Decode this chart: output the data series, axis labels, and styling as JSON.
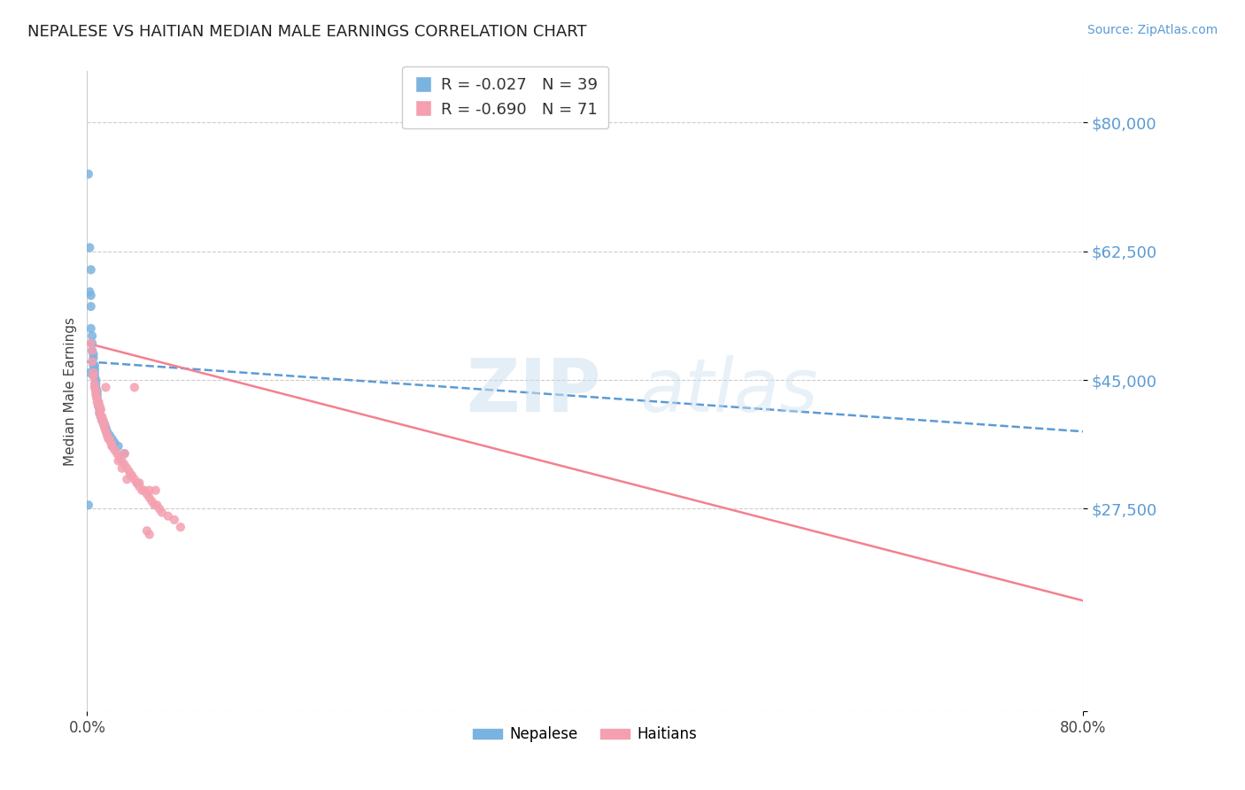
{
  "title": "NEPALESE VS HAITIAN MEDIAN MALE EARNINGS CORRELATION CHART",
  "source": "Source: ZipAtlas.com",
  "ylabel": "Median Male Earnings",
  "ylim": [
    0,
    87000
  ],
  "xlim": [
    0.0,
    0.8
  ],
  "background": "#ffffff",
  "nepalese_color": "#7ab3e0",
  "haitian_color": "#f4a0b0",
  "nepalese_line_color": "#5b9bd5",
  "haitian_line_color": "#f48090",
  "grid_color": "#cccccc",
  "ytick_color": "#5b9bd5",
  "nepalese_scatter_x": [
    0.001,
    0.002,
    0.002,
    0.003,
    0.003,
    0.003,
    0.004,
    0.004,
    0.004,
    0.005,
    0.005,
    0.005,
    0.006,
    0.006,
    0.006,
    0.006,
    0.007,
    0.007,
    0.007,
    0.008,
    0.008,
    0.008,
    0.009,
    0.009,
    0.01,
    0.01,
    0.011,
    0.012,
    0.014,
    0.015,
    0.016,
    0.018,
    0.02,
    0.022,
    0.025,
    0.03,
    0.001,
    0.002,
    0.003
  ],
  "nepalese_scatter_y": [
    73000,
    63000,
    57000,
    56500,
    55000,
    52000,
    51000,
    50000,
    49000,
    48500,
    48000,
    47000,
    47000,
    46500,
    46000,
    45500,
    45000,
    44500,
    44000,
    43500,
    43000,
    42500,
    42000,
    41500,
    41000,
    40500,
    40000,
    39500,
    39000,
    38500,
    38000,
    37500,
    37000,
    36500,
    36000,
    35000,
    28000,
    46000,
    60000
  ],
  "haitian_scatter_x": [
    0.003,
    0.004,
    0.004,
    0.005,
    0.005,
    0.006,
    0.006,
    0.007,
    0.007,
    0.008,
    0.008,
    0.009,
    0.009,
    0.01,
    0.01,
    0.011,
    0.012,
    0.013,
    0.014,
    0.015,
    0.016,
    0.017,
    0.018,
    0.019,
    0.02,
    0.022,
    0.024,
    0.026,
    0.028,
    0.03,
    0.032,
    0.034,
    0.036,
    0.038,
    0.04,
    0.042,
    0.044,
    0.046,
    0.048,
    0.05,
    0.052,
    0.054,
    0.056,
    0.058,
    0.06,
    0.065,
    0.07,
    0.075,
    0.007,
    0.008,
    0.009,
    0.01,
    0.011,
    0.012,
    0.013,
    0.014,
    0.015,
    0.02,
    0.025,
    0.028,
    0.032,
    0.038,
    0.042,
    0.048,
    0.05,
    0.055,
    0.03,
    0.035,
    0.04,
    0.05
  ],
  "haitian_scatter_y": [
    50000,
    49000,
    47500,
    46000,
    45500,
    44500,
    44000,
    43500,
    43000,
    42500,
    42000,
    42000,
    41500,
    41000,
    40500,
    40000,
    39500,
    39000,
    38500,
    38000,
    37500,
    37000,
    37000,
    36500,
    36000,
    35500,
    35000,
    34500,
    34000,
    33500,
    33000,
    32500,
    32000,
    31500,
    31000,
    30500,
    30000,
    30000,
    29500,
    29000,
    28500,
    28000,
    28000,
    27500,
    27000,
    26500,
    26000,
    25000,
    43500,
    42500,
    42000,
    41500,
    41000,
    40000,
    39500,
    39000,
    44000,
    36000,
    34000,
    33000,
    31500,
    44000,
    31000,
    24500,
    30000,
    30000,
    35000,
    32000,
    31000,
    24000
  ],
  "nepalese_trendline_x": [
    0.0,
    0.8
  ],
  "nepalese_trendline_y": [
    47500,
    38000
  ],
  "haitian_trendline_x": [
    0.0,
    0.8
  ],
  "haitian_trendline_y": [
    50000,
    15000
  ],
  "ytick_vals": [
    0,
    27500,
    45000,
    62500,
    80000
  ],
  "ytick_labels": [
    "",
    "$27,500",
    "$45,000",
    "$62,500",
    "$80,000"
  ]
}
